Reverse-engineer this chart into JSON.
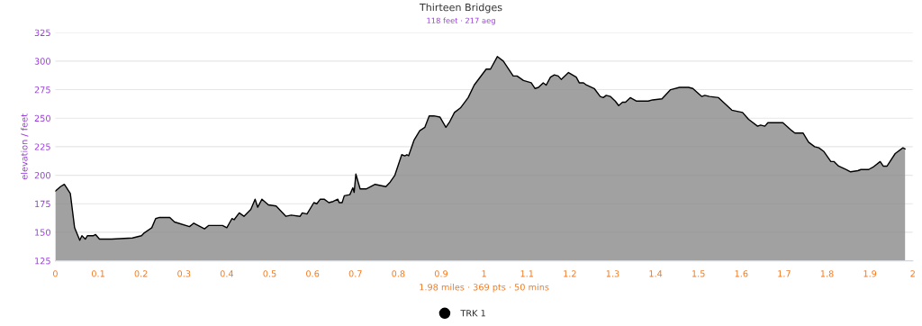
{
  "chart_data": {
    "type": "area",
    "title": "Thirteen Bridges",
    "subtitle": "118 feet · 217 aeg",
    "xlabel": "1.98 miles · 369 pts · 50 mins",
    "ylabel": "elevation / feet",
    "xlim": [
      0,
      2
    ],
    "ylim": [
      125,
      325
    ],
    "xticks": [
      0,
      0.1,
      0.2,
      0.3,
      0.4,
      0.5,
      0.6,
      0.7,
      0.8,
      0.9,
      1,
      1.1,
      1.2,
      1.3,
      1.4,
      1.5,
      1.6,
      1.7,
      1.8,
      1.9,
      2
    ],
    "yticks": [
      125,
      150,
      175,
      200,
      225,
      250,
      275,
      300,
      325
    ],
    "grid": "y",
    "legend": "bottom",
    "marker": "none",
    "series": [
      {
        "name": "TRK 1",
        "color": "#000000",
        "x": [
          0,
          0.012,
          0.021,
          0.035,
          0.045,
          0.057,
          0.062,
          0.07,
          0.075,
          0.089,
          0.094,
          0.103,
          0.131,
          0.18,
          0.201,
          0.206,
          0.225,
          0.234,
          0.243,
          0.267,
          0.278,
          0.313,
          0.323,
          0.348,
          0.358,
          0.39,
          0.4,
          0.412,
          0.417,
          0.429,
          0.44,
          0.456,
          0.466,
          0.472,
          0.482,
          0.497,
          0.515,
          0.538,
          0.55,
          0.571,
          0.576,
          0.587,
          0.603,
          0.61,
          0.618,
          0.627,
          0.638,
          0.648,
          0.659,
          0.662,
          0.669,
          0.674,
          0.687,
          0.694,
          0.697,
          0.701,
          0.711,
          0.725,
          0.746,
          0.771,
          0.781,
          0.792,
          0.808,
          0.815,
          0.82,
          0.824,
          0.837,
          0.85,
          0.862,
          0.872,
          0.883,
          0.897,
          0.911,
          0.92,
          0.931,
          0.945,
          0.963,
          0.977,
          1.005,
          1.015,
          1.031,
          1.045,
          1.068,
          1.077,
          1.092,
          1.11,
          1.119,
          1.127,
          1.138,
          1.145,
          1.155,
          1.164,
          1.173,
          1.18,
          1.197,
          1.215,
          1.222,
          1.232,
          1.239,
          1.257,
          1.271,
          1.278,
          1.285,
          1.295,
          1.306,
          1.314,
          1.323,
          1.33,
          1.341,
          1.355,
          1.383,
          1.393,
          1.415,
          1.435,
          1.456,
          1.477,
          1.487,
          1.508,
          1.515,
          1.526,
          1.547,
          1.561,
          1.578,
          1.603,
          1.617,
          1.638,
          1.645,
          1.655,
          1.662,
          1.697,
          1.718,
          1.725,
          1.744,
          1.757,
          1.771,
          1.781,
          1.792,
          1.809,
          1.816,
          1.827,
          1.844,
          1.855,
          1.872,
          1.879,
          1.897,
          1.907,
          1.924,
          1.931,
          1.94,
          1.959,
          1.977,
          1.982
        ],
        "values": [
          186,
          190,
          192,
          184,
          154,
          143,
          147,
          144,
          147,
          147,
          148,
          144,
          144,
          145,
          147,
          149,
          154,
          162,
          163,
          163,
          159,
          155,
          158,
          153,
          156,
          156,
          154,
          162,
          161,
          167,
          164,
          170,
          179,
          172,
          179,
          174,
          173,
          164,
          165,
          164,
          167,
          166,
          176,
          175,
          179,
          179,
          176,
          177,
          179,
          176,
          176,
          182,
          183,
          189,
          185,
          201,
          188,
          188,
          192,
          190,
          194,
          200,
          218,
          217,
          218,
          217,
          231,
          239,
          242,
          252,
          252,
          251,
          242,
          247,
          255,
          259,
          268,
          279,
          293,
          293,
          304,
          300,
          287,
          287,
          283,
          281,
          276,
          277,
          281,
          279,
          286,
          288,
          287,
          284,
          290,
          286,
          281,
          281,
          279,
          276,
          269,
          268,
          270,
          269,
          265,
          261,
          264,
          264,
          268,
          265,
          265,
          266,
          267,
          275,
          277,
          277,
          276,
          269,
          270,
          269,
          268,
          263,
          257,
          255,
          249,
          243,
          244,
          243,
          246,
          246,
          239,
          237,
          237,
          229,
          225,
          224,
          221,
          212,
          212,
          208,
          205,
          203,
          204,
          205,
          205,
          207,
          212,
          208,
          208,
          219,
          224,
          223
        ]
      }
    ]
  }
}
